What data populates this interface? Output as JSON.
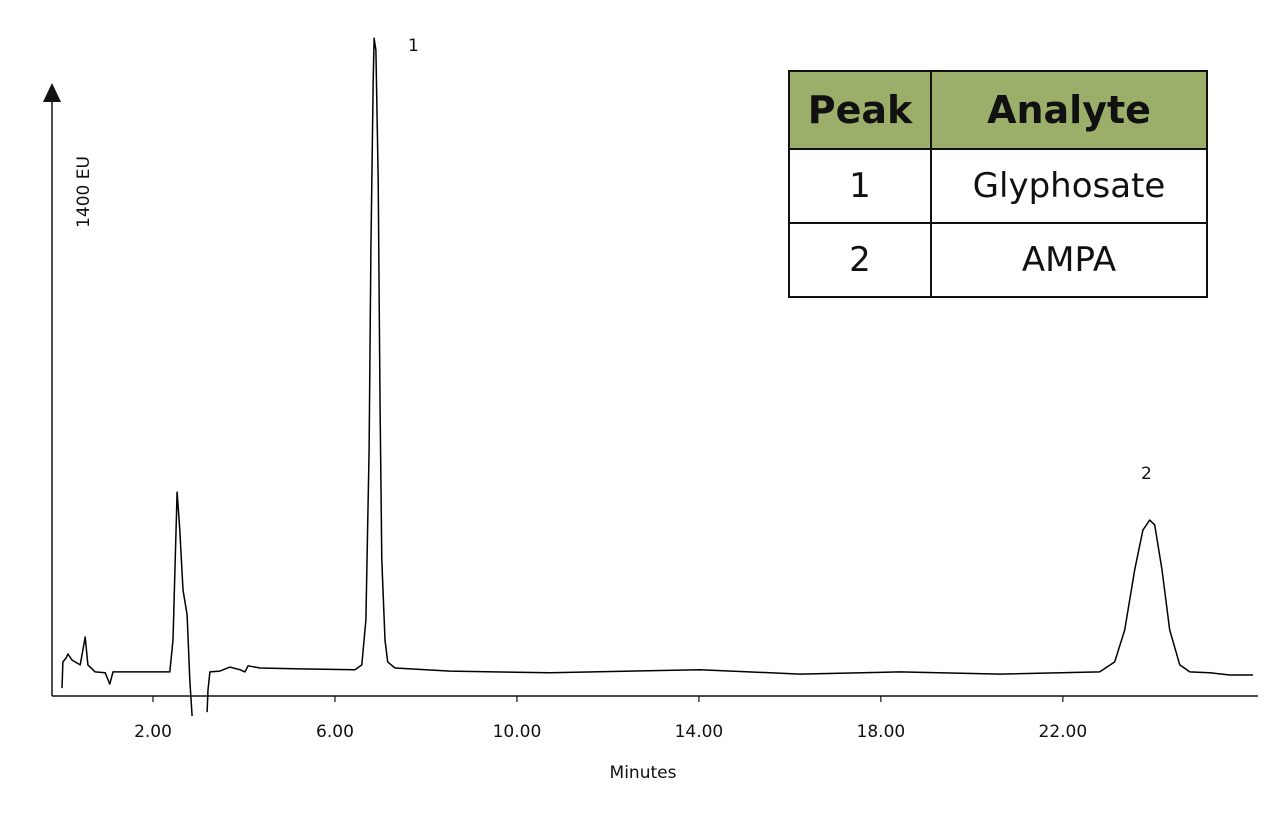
{
  "chart_data": {
    "type": "line",
    "xlabel": "Minutes",
    "ylabel": "1400 EU",
    "color": "#000000",
    "xlim": [
      -0.22,
      26.29
    ],
    "ylim": [
      -46,
      1526
    ],
    "xticks": [
      {
        "value": 2,
        "label": "2.00"
      },
      {
        "value": 6,
        "label": "6.00"
      },
      {
        "value": 10,
        "label": "10.00"
      },
      {
        "value": 14,
        "label": "14.00"
      },
      {
        "value": 18,
        "label": "18.00"
      },
      {
        "value": 22,
        "label": "22.00"
      }
    ],
    "annotations": [
      "1",
      "2"
    ],
    "x": [
      0.0,
      0.02,
      0.09,
      0.13,
      0.22,
      0.4,
      0.51,
      0.57,
      0.73,
      0.95,
      1.05,
      1.12,
      1.27,
      2.37,
      2.44,
      2.53,
      2.59,
      2.66,
      2.75,
      2.81,
      2.86,
      3.0,
      3.19,
      3.21,
      3.25,
      3.47,
      3.69,
      3.91,
      4.02,
      4.09,
      4.35,
      5.23,
      6.44,
      6.59,
      6.68,
      6.75,
      6.79,
      6.84,
      6.86,
      6.9,
      6.95,
      6.99,
      7.03,
      7.1,
      7.16,
      7.32,
      8.53,
      10.73,
      14.02,
      16.22,
      18.42,
      20.62,
      22.81,
      23.14,
      23.36,
      23.58,
      23.76,
      23.91,
      24.02,
      24.18,
      24.35,
      24.57,
      24.79,
      25.23,
      25.67,
      26.18
    ],
    "values": [
      18,
      78,
      87,
      96,
      82,
      71,
      135,
      71,
      55,
      53,
      27,
      55,
      55,
      55,
      128,
      467,
      380,
      243,
      186,
      37,
      -46,
      null,
      -37,
      14,
      55,
      57,
      66,
      60,
      55,
      69,
      64,
      62,
      60,
      71,
      174,
      564,
      1022,
      1411,
      1507,
      1480,
      1182,
      678,
      312,
      128,
      78,
      64,
      57,
      53,
      60,
      50,
      55,
      50,
      55,
      78,
      151,
      289,
      380,
      403,
      392,
      289,
      151,
      71,
      55,
      53,
      48,
      48
    ]
  },
  "table": {
    "header": [
      "Peak",
      "Analyte"
    ],
    "rows": [
      [
        "1",
        "Glyphosate"
      ],
      [
        "2",
        "AMPA"
      ]
    ]
  }
}
